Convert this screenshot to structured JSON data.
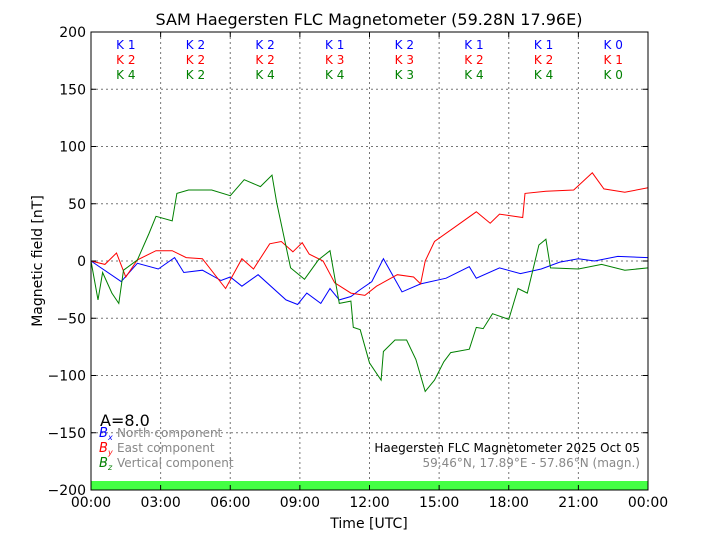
{
  "chart_data": {
    "type": "line",
    "title": "SAM Haegersten FLC Magnetometer (59.28N 17.96E)",
    "xlabel": "Time [UTC]",
    "ylabel": "Magnetic field [nT]",
    "xlim": [
      0,
      24
    ],
    "ylim": [
      -200,
      200
    ],
    "grid": true,
    "xticks": [
      0,
      3,
      6,
      9,
      12,
      15,
      18,
      21,
      24
    ],
    "xtick_labels": [
      "00:00",
      "03:00",
      "06:00",
      "09:00",
      "12:00",
      "15:00",
      "18:00",
      "21:00",
      "00:00"
    ],
    "yticks": [
      200,
      150,
      100,
      50,
      0,
      -50,
      -100,
      -150,
      -200
    ],
    "ytick_labels": [
      "200",
      "150",
      "100",
      "50",
      "0",
      "−50",
      "−100",
      "−150",
      "−200"
    ],
    "x_unit": "hours UTC",
    "series": [
      {
        "name": "North component",
        "symbol": "B",
        "sub": "x",
        "color": "#0000ff",
        "points": [
          [
            0,
            0
          ],
          [
            1.3,
            -18
          ],
          [
            2,
            -2
          ],
          [
            2.9,
            -7
          ],
          [
            3.6,
            3
          ],
          [
            4.0,
            -10
          ],
          [
            4.8,
            -8
          ],
          [
            5.6,
            -17
          ],
          [
            6.0,
            -14
          ],
          [
            6.5,
            -22
          ],
          [
            7.2,
            -12
          ],
          [
            8.4,
            -34
          ],
          [
            8.9,
            -38
          ],
          [
            9.3,
            -28
          ],
          [
            9.9,
            -37
          ],
          [
            10.3,
            -24
          ],
          [
            10.7,
            -34
          ],
          [
            11.2,
            -31
          ],
          [
            11.6,
            -25
          ],
          [
            12.1,
            -18
          ],
          [
            12.6,
            2
          ],
          [
            13.4,
            -27
          ],
          [
            14.2,
            -20
          ],
          [
            15.3,
            -15
          ],
          [
            16.3,
            -5
          ],
          [
            16.6,
            -15
          ],
          [
            17.6,
            -6
          ],
          [
            18.5,
            -11
          ],
          [
            19.4,
            -7
          ],
          [
            20.2,
            -1
          ],
          [
            21.0,
            2
          ],
          [
            21.7,
            0
          ],
          [
            22.7,
            4
          ],
          [
            24,
            3
          ]
        ]
      },
      {
        "name": "East component",
        "symbol": "B",
        "sub": "y",
        "color": "#ff0000",
        "points": [
          [
            0,
            0
          ],
          [
            0.6,
            -3
          ],
          [
            1.1,
            7
          ],
          [
            1.5,
            -14
          ],
          [
            2.0,
            1
          ],
          [
            2.8,
            9
          ],
          [
            3.5,
            9
          ],
          [
            4.1,
            3
          ],
          [
            4.8,
            2
          ],
          [
            5.8,
            -24
          ],
          [
            6.5,
            2
          ],
          [
            7.0,
            -7
          ],
          [
            7.7,
            15
          ],
          [
            8.2,
            17
          ],
          [
            8.7,
            8
          ],
          [
            9.1,
            16
          ],
          [
            9.4,
            6
          ],
          [
            10.0,
            0
          ],
          [
            10.5,
            -19
          ],
          [
            11.2,
            -28
          ],
          [
            11.8,
            -30
          ],
          [
            12.3,
            -22
          ],
          [
            13.2,
            -12
          ],
          [
            13.9,
            -14
          ],
          [
            14.2,
            -20
          ],
          [
            14.4,
            0
          ],
          [
            14.8,
            17
          ],
          [
            15.7,
            30
          ],
          [
            16.6,
            43
          ],
          [
            17.2,
            33
          ],
          [
            17.6,
            41
          ],
          [
            18.6,
            38
          ],
          [
            18.7,
            59
          ],
          [
            19.6,
            61
          ],
          [
            20.8,
            62
          ],
          [
            21.6,
            77
          ],
          [
            22.1,
            63
          ],
          [
            23.0,
            60
          ],
          [
            24,
            64
          ]
        ]
      },
      {
        "name": "Vertical component",
        "symbol": "B",
        "sub": "z",
        "color": "#008000",
        "points": [
          [
            0,
            0
          ],
          [
            0.3,
            -34
          ],
          [
            0.5,
            -10
          ],
          [
            0.9,
            -28
          ],
          [
            1.2,
            -37
          ],
          [
            1.4,
            -8
          ],
          [
            2.0,
            1
          ],
          [
            2.5,
            24
          ],
          [
            2.8,
            39
          ],
          [
            3.5,
            35
          ],
          [
            3.7,
            59
          ],
          [
            4.2,
            62
          ],
          [
            5.2,
            62
          ],
          [
            6.0,
            57
          ],
          [
            6.6,
            71
          ],
          [
            7.3,
            65
          ],
          [
            7.8,
            75
          ],
          [
            8.0,
            51
          ],
          [
            8.6,
            -6
          ],
          [
            9.2,
            -16
          ],
          [
            9.8,
            1
          ],
          [
            10.3,
            9
          ],
          [
            10.7,
            -37
          ],
          [
            11.2,
            -35
          ],
          [
            11.3,
            -58
          ],
          [
            11.6,
            -60
          ],
          [
            12.0,
            -89
          ],
          [
            12.5,
            -104
          ],
          [
            12.6,
            -79
          ],
          [
            13.1,
            -69
          ],
          [
            13.6,
            -69
          ],
          [
            14.0,
            -86
          ],
          [
            14.4,
            -114
          ],
          [
            14.8,
            -104
          ],
          [
            15.2,
            -88
          ],
          [
            15.5,
            -80
          ],
          [
            16.3,
            -77
          ],
          [
            16.6,
            -58
          ],
          [
            16.9,
            -59
          ],
          [
            17.3,
            -46
          ],
          [
            18.0,
            -51
          ],
          [
            18.4,
            -24
          ],
          [
            18.8,
            -28
          ],
          [
            19.3,
            14
          ],
          [
            19.6,
            19
          ],
          [
            19.8,
            -6
          ],
          [
            21.0,
            -7
          ],
          [
            22.0,
            -3
          ],
          [
            23.0,
            -8
          ],
          [
            24,
            -6
          ]
        ]
      }
    ],
    "k_indices": {
      "colors": [
        "#0000ff",
        "#ff0000",
        "#008000"
      ],
      "rows": [
        [
          "K 1",
          "K 2",
          "K 2",
          "K 1",
          "K 2",
          "K 1",
          "K 1",
          "K 0"
        ],
        [
          "K 2",
          "K 2",
          "K 2",
          "K 3",
          "K 3",
          "K 2",
          "K 2",
          "K 1"
        ],
        [
          "K 4",
          "K 2",
          "K 4",
          "K 4",
          "K 3",
          "K 4",
          "K 4",
          "K 0"
        ]
      ]
    },
    "activity_band_color": "#44ff44",
    "a_index": "A=8.0",
    "annotation_title": "Haegersten FLC Magnetometer 2025 Oct 05",
    "annotation_coords": "59.46°N, 17.89°E - 57.86°N (magn.)"
  }
}
